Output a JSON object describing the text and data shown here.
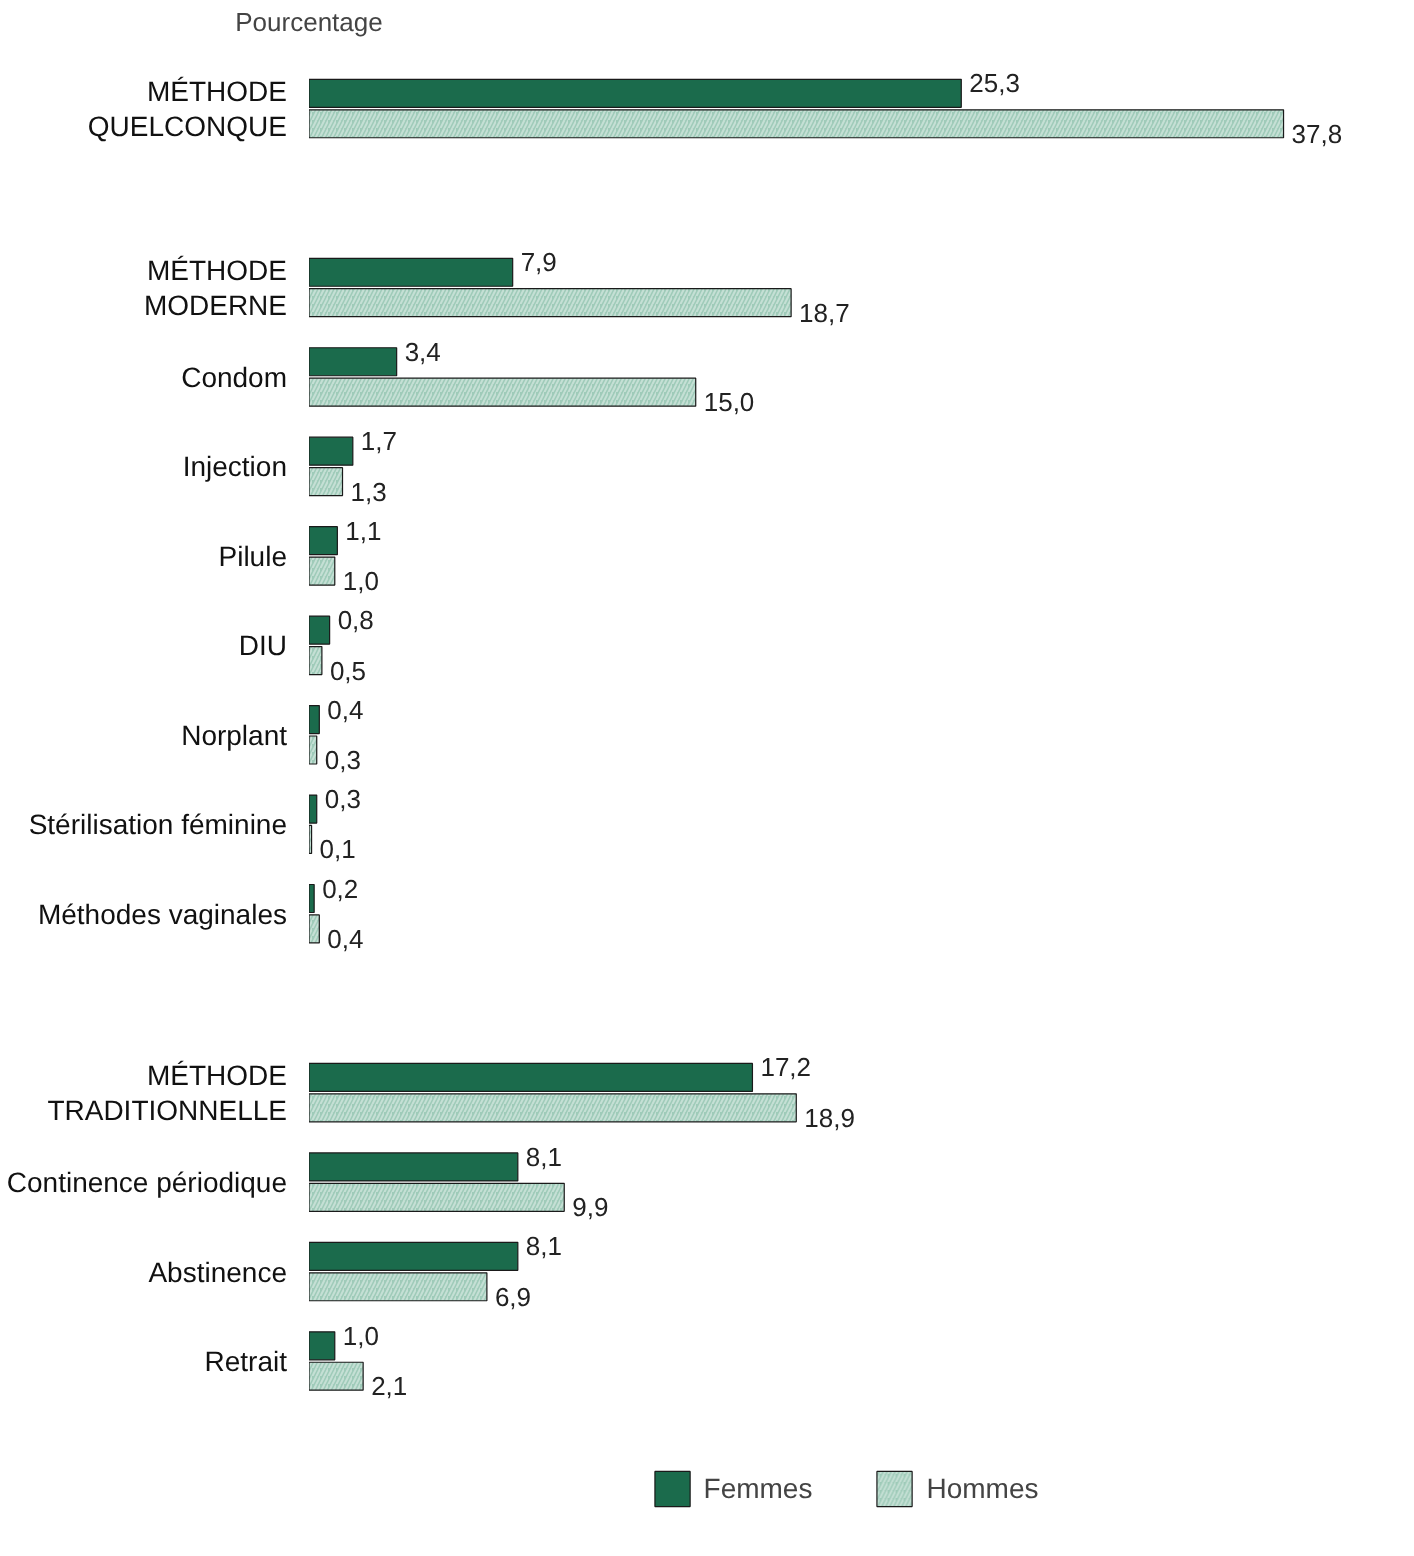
{
  "chart_data": {
    "type": "bar",
    "orientation": "horizontal",
    "xlabel": "Pourcentage",
    "categories": [
      "MÉTHODE\nQUELCONQUE",
      null,
      "MÉTHODE\nMODERNE",
      "Condom",
      "Injection",
      "Pilule",
      "DIU",
      "Norplant",
      "Stérilisation féminine",
      "Méthodes vaginales",
      null,
      "MÉTHODE\nTRADITIONNELLE",
      "Continence périodique",
      "Abstinence",
      "Retrait"
    ],
    "series": [
      {
        "name": "Femmes",
        "color": "#1b6b4c",
        "values": [
          25.3,
          null,
          7.9,
          3.4,
          1.7,
          1.1,
          0.8,
          0.4,
          0.3,
          0.2,
          null,
          17.2,
          8.1,
          8.1,
          1.0
        ],
        "value_labels": [
          "25,3",
          null,
          "7,9",
          "3,4",
          "1,7",
          "1,1",
          "0,8",
          "0,4",
          "0,3",
          "0,2",
          null,
          "17,2",
          "8,1",
          "8,1",
          "1,0"
        ]
      },
      {
        "name": "Hommes",
        "color": "#9fcbb9",
        "values": [
          37.8,
          null,
          18.7,
          15.0,
          1.3,
          1.0,
          0.5,
          0.3,
          0.1,
          0.4,
          null,
          18.9,
          9.9,
          6.9,
          2.1
        ],
        "value_labels": [
          "37,8",
          null,
          "18,7",
          "15,0",
          "1,3",
          "1,0",
          "0,5",
          "0,3",
          "0,1",
          "0,4",
          null,
          "18,9",
          "9,9",
          "6,9",
          "2,1"
        ]
      }
    ],
    "legend": "bottom",
    "grid": false
  }
}
